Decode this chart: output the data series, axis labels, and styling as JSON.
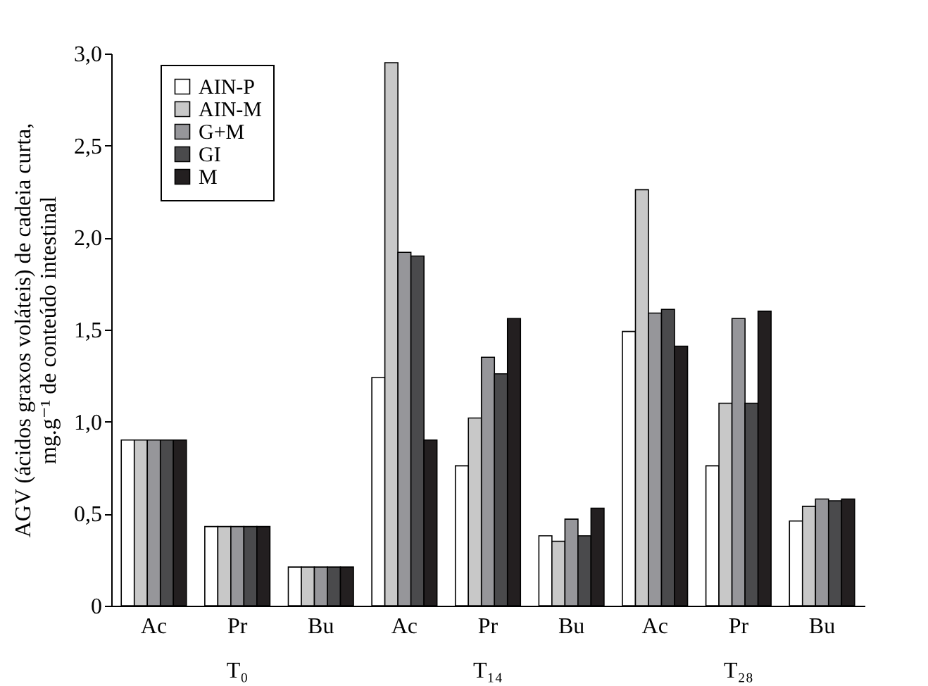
{
  "chart_data": {
    "type": "bar",
    "ylabel": "AGV (ácidos graxos voláteis) de cadeia curta,\nmg.g⁻¹ de conteúdo intestinal",
    "categories": [
      "Ac",
      "Pr",
      "Bu",
      "Ac",
      "Pr",
      "Bu",
      "Ac",
      "Pr",
      "Bu"
    ],
    "annotations": [
      "T₀",
      "T₁₄",
      "T₂₈"
    ],
    "series": [
      {
        "name": "AIN-P",
        "color": "#ffffff",
        "values": [
          0.9,
          0.43,
          0.21,
          1.24,
          0.76,
          0.38,
          1.49,
          0.76,
          0.46
        ]
      },
      {
        "name": "AIN-M",
        "color": "#c8c8c8",
        "values": [
          0.9,
          0.43,
          0.21,
          2.95,
          1.02,
          0.35,
          2.26,
          1.1,
          0.54
        ]
      },
      {
        "name": "G+M",
        "color": "#96969a",
        "values": [
          0.9,
          0.43,
          0.21,
          1.92,
          1.35,
          0.47,
          1.59,
          1.56,
          0.58
        ]
      },
      {
        "name": "GI",
        "color": "#4a4a4c",
        "values": [
          0.9,
          0.43,
          0.21,
          1.9,
          1.26,
          0.38,
          1.61,
          1.1,
          0.57
        ]
      },
      {
        "name": "M",
        "color": "#231f20",
        "values": [
          0.9,
          0.43,
          0.21,
          0.9,
          1.56,
          0.53,
          1.41,
          1.6,
          0.58
        ]
      }
    ],
    "ylim": [
      0,
      3
    ],
    "yticks": [
      0,
      {
        "value": 0.5,
        "label": "0,5"
      },
      {
        "value": 1,
        "label": "1,0"
      },
      {
        "value": 1.5,
        "label": "1,5"
      },
      {
        "value": 2,
        "label": "2,0"
      },
      {
        "value": 2.5,
        "label": "2,5"
      },
      {
        "value": 3,
        "label": "3,0"
      }
    ],
    "legend": "top left"
  }
}
